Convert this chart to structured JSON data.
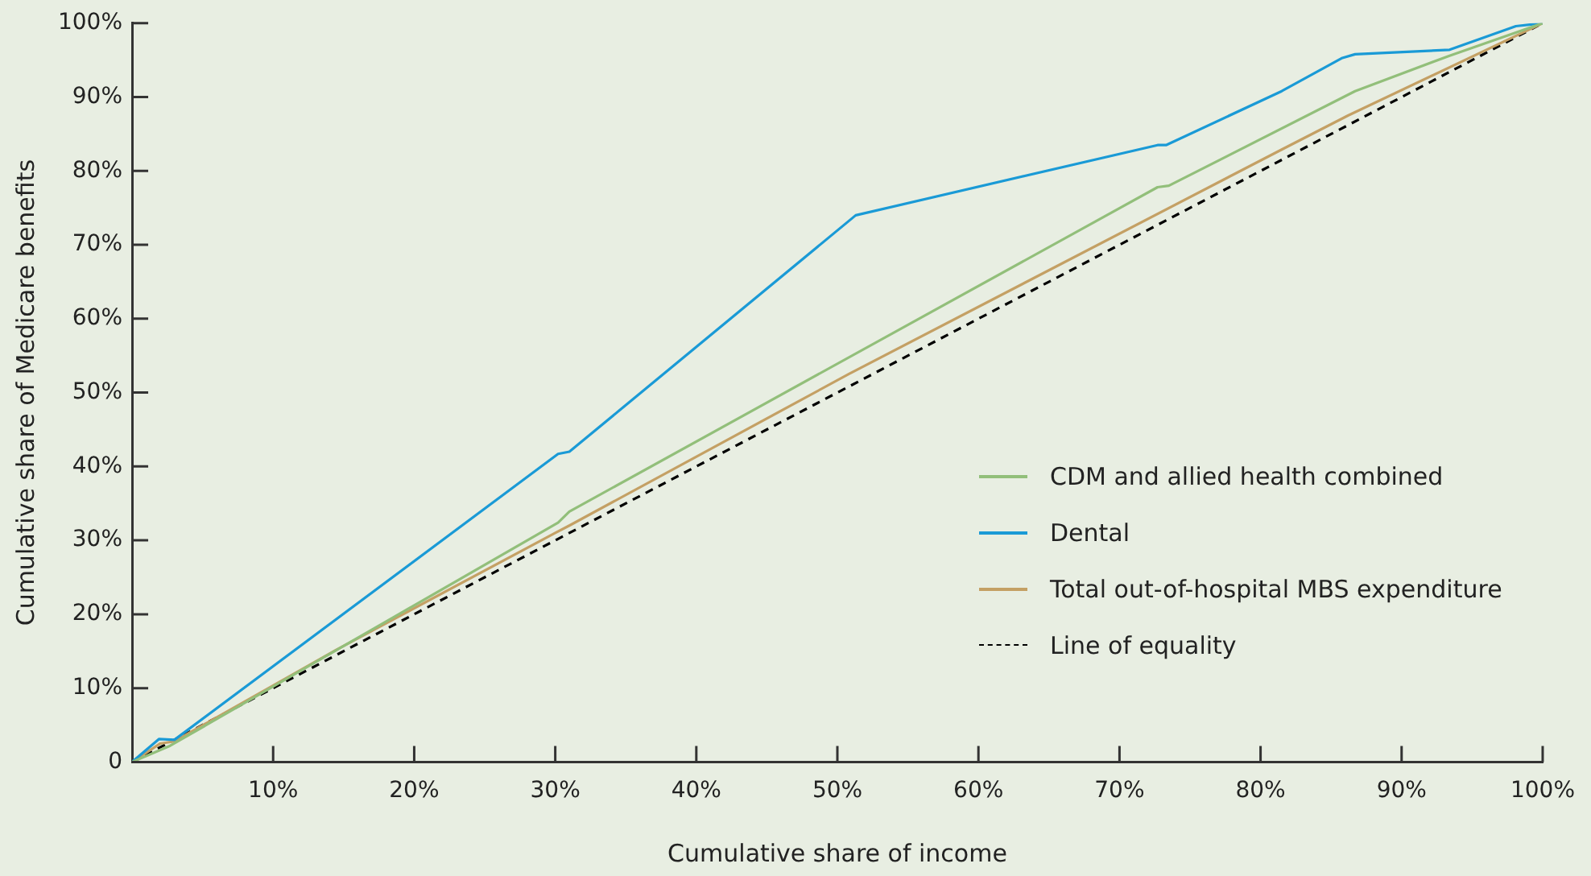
{
  "chart_data": {
    "type": "line",
    "xlabel": "Cumulative share of income",
    "ylabel": "Cumulative share of Medicare benefits",
    "xlim": [
      0,
      100
    ],
    "ylim": [
      0,
      100
    ],
    "xticks": [
      {
        "value": 10,
        "label": "10%"
      },
      {
        "value": 20,
        "label": "20%"
      },
      {
        "value": 30,
        "label": "30%"
      },
      {
        "value": 40,
        "label": "40%"
      },
      {
        "value": 50,
        "label": "50%"
      },
      {
        "value": 60,
        "label": "60%"
      },
      {
        "value": 70,
        "label": "70%"
      },
      {
        "value": 80,
        "label": "80%"
      },
      {
        "value": 90,
        "label": "90%"
      },
      {
        "value": 100,
        "label": "100%"
      }
    ],
    "yticks": [
      0,
      {
        "value": 10,
        "label": "10%"
      },
      {
        "value": 20,
        "label": "20%"
      },
      {
        "value": 30,
        "label": "30%"
      },
      {
        "value": 40,
        "label": "40%"
      },
      {
        "value": 50,
        "label": "50%"
      },
      {
        "value": 60,
        "label": "60%"
      },
      {
        "value": 70,
        "label": "70%"
      },
      {
        "value": 80,
        "label": "80%"
      },
      {
        "value": 90,
        "label": "90%"
      },
      {
        "value": 100,
        "label": "100%"
      }
    ],
    "grid": false,
    "legend": "right",
    "marker": "none",
    "series": [
      {
        "name": "CDM and allied health combined",
        "color": "#92bf7a",
        "line_style": "solid",
        "x": [
          0,
          2.7,
          30.2,
          31,
          72.7,
          73.5,
          86.7,
          93.4,
          100
        ],
        "values": [
          0,
          2.2,
          32.4,
          33.9,
          77.8,
          78,
          90.8,
          95.6,
          100
        ]
      },
      {
        "name": "Dental",
        "color": "#1a9ad6",
        "line_style": "solid",
        "x": [
          0,
          1.9,
          3,
          30.2,
          31,
          51.3,
          72.7,
          73.3,
          81.5,
          85.8,
          86.7,
          93.4,
          98.1,
          100
        ],
        "values": [
          0,
          3.1,
          3,
          41.7,
          42,
          74,
          83.5,
          83.5,
          90.8,
          95.3,
          95.8,
          96.4,
          99.6,
          100
        ]
      },
      {
        "name": "Total out-of-hospital MBS expenditure",
        "color": "#c4a064",
        "line_style": "solid",
        "x": [
          0,
          2,
          3,
          14.5,
          30,
          31,
          50.8,
          81.5,
          86.2,
          100
        ],
        "values": [
          0,
          2.5,
          2.8,
          15.2,
          31,
          32,
          52.5,
          82.9,
          87.5,
          100
        ]
      },
      {
        "name": "Line of equality",
        "color": "#000000",
        "line_style": "dashed",
        "x": [
          0,
          100
        ],
        "values": [
          0,
          100
        ]
      }
    ]
  }
}
